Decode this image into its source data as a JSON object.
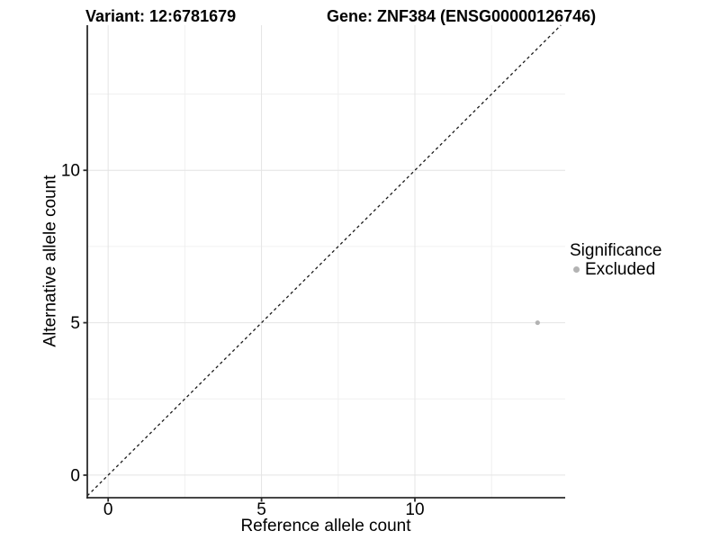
{
  "figure": {
    "background": "#ffffff"
  },
  "chart_data": {
    "type": "scatter",
    "title_left": "Variant: 12:6781679",
    "title_right": "Gene: ZNF384 (ENSG00000126746)",
    "xlabel": "Reference allele count",
    "ylabel": "Alternative allele count",
    "xlim": [
      -0.68,
      14.9
    ],
    "ylim": [
      -0.74,
      14.76
    ],
    "xticks": [
      0,
      5,
      10
    ],
    "yticks": [
      0,
      5,
      10
    ],
    "xticks_minor": [
      2.5,
      7.5,
      12.5
    ],
    "yticks_minor": [
      2.5,
      7.5,
      12.5
    ],
    "grid": "major and minor, light gray on white",
    "reference_line": {
      "description": "identity line y = x",
      "slope": 1,
      "intercept": 0,
      "style": "dashed",
      "color": "#1a1a1a"
    },
    "series": [
      {
        "name": "Excluded",
        "color": "#b3b3b3",
        "marker": "circle",
        "points": [
          {
            "x": 14,
            "y": 5
          }
        ]
      }
    ],
    "legend": {
      "title": "Significance",
      "position": "right",
      "items": [
        {
          "label": "Excluded",
          "color": "#b3b3b3"
        }
      ]
    }
  },
  "style": {
    "axis_line_color": "#2b2b2b",
    "grid_major_color": "#e4e4e4",
    "grid_minor_color": "#f0f0f0",
    "tick_label_color": "#000000",
    "text_color": "#000000"
  }
}
